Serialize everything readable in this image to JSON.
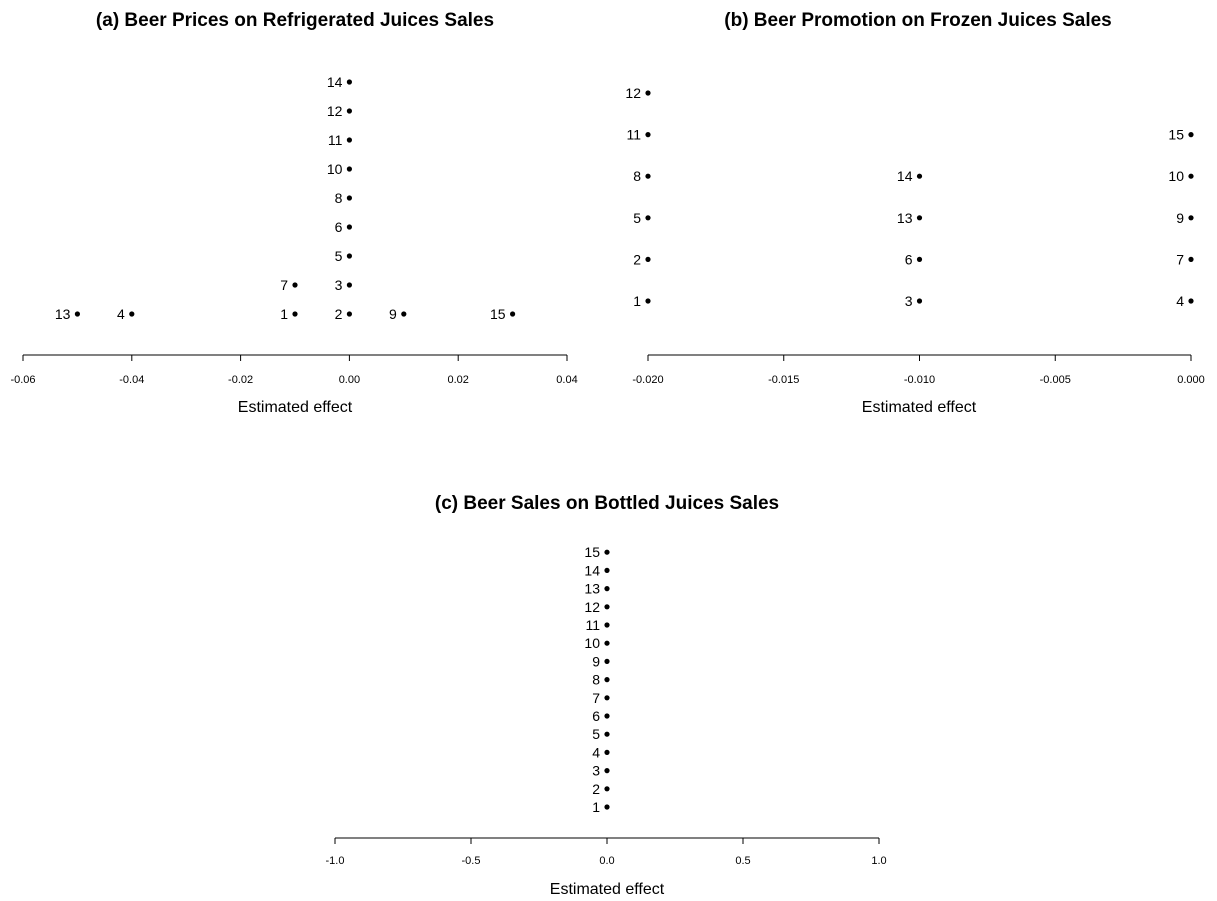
{
  "chart_data": [
    {
      "type": "scatter",
      "title": "(a) Beer Prices on Refrigerated Juices Sales",
      "xlabel": "Estimated effect",
      "ylabel": "",
      "xlim": [
        -0.06,
        0.04
      ],
      "xticks": [
        "-0.06",
        "-0.04",
        "-0.02",
        "0.00",
        "0.02",
        "0.04"
      ],
      "grid": false,
      "points": [
        {
          "label": "14",
          "x": 0.0,
          "level": 9
        },
        {
          "label": "12",
          "x": 0.0,
          "level": 8
        },
        {
          "label": "11",
          "x": 0.0,
          "level": 7
        },
        {
          "label": "10",
          "x": 0.0,
          "level": 6
        },
        {
          "label": "8",
          "x": 0.0,
          "level": 5
        },
        {
          "label": "6",
          "x": 0.0,
          "level": 4
        },
        {
          "label": "5",
          "x": 0.0,
          "level": 3
        },
        {
          "label": "7",
          "x": -0.01,
          "level": 2
        },
        {
          "label": "3",
          "x": 0.0,
          "level": 2
        },
        {
          "label": "13",
          "x": -0.05,
          "level": 1
        },
        {
          "label": "4",
          "x": -0.04,
          "level": 1
        },
        {
          "label": "1",
          "x": -0.01,
          "level": 1
        },
        {
          "label": "2",
          "x": 0.0,
          "level": 1
        },
        {
          "label": "9",
          "x": 0.01,
          "level": 1
        },
        {
          "label": "15",
          "x": 0.03,
          "level": 1
        }
      ]
    },
    {
      "type": "scatter",
      "title": "(b) Beer Promotion on Frozen Juices Sales",
      "xlabel": "Estimated effect",
      "ylabel": "",
      "xlim": [
        -0.02,
        0.0
      ],
      "xticks": [
        "-0.020",
        "-0.015",
        "-0.010",
        "-0.005",
        "0.000"
      ],
      "grid": false,
      "points": [
        {
          "label": "12",
          "x": -0.02,
          "level": 6
        },
        {
          "label": "11",
          "x": -0.02,
          "level": 5
        },
        {
          "label": "15",
          "x": 0.0,
          "level": 5
        },
        {
          "label": "8",
          "x": -0.02,
          "level": 4
        },
        {
          "label": "14",
          "x": -0.01,
          "level": 4
        },
        {
          "label": "10",
          "x": 0.0,
          "level": 4
        },
        {
          "label": "5",
          "x": -0.02,
          "level": 3
        },
        {
          "label": "13",
          "x": -0.01,
          "level": 3
        },
        {
          "label": "9",
          "x": 0.0,
          "level": 3
        },
        {
          "label": "2",
          "x": -0.02,
          "level": 2
        },
        {
          "label": "6",
          "x": -0.01,
          "level": 2
        },
        {
          "label": "7",
          "x": 0.0,
          "level": 2
        },
        {
          "label": "1",
          "x": -0.02,
          "level": 1
        },
        {
          "label": "3",
          "x": -0.01,
          "level": 1
        },
        {
          "label": "4",
          "x": 0.0,
          "level": 1
        }
      ]
    },
    {
      "type": "scatter",
      "title": "(c) Beer Sales on Bottled Juices Sales",
      "xlabel": "Estimated effect",
      "ylabel": "",
      "xlim": [
        -1.0,
        1.0
      ],
      "xticks": [
        "-1.0",
        "-0.5",
        "0.0",
        "0.5",
        "1.0"
      ],
      "grid": false,
      "points": [
        {
          "label": "15",
          "x": 0.0,
          "level": 15
        },
        {
          "label": "14",
          "x": 0.0,
          "level": 14
        },
        {
          "label": "13",
          "x": 0.0,
          "level": 13
        },
        {
          "label": "12",
          "x": 0.0,
          "level": 12
        },
        {
          "label": "11",
          "x": 0.0,
          "level": 11
        },
        {
          "label": "10",
          "x": 0.0,
          "level": 10
        },
        {
          "label": "9",
          "x": 0.0,
          "level": 9
        },
        {
          "label": "8",
          "x": 0.0,
          "level": 8
        },
        {
          "label": "7",
          "x": 0.0,
          "level": 7
        },
        {
          "label": "6",
          "x": 0.0,
          "level": 6
        },
        {
          "label": "5",
          "x": 0.0,
          "level": 5
        },
        {
          "label": "4",
          "x": 0.0,
          "level": 4
        },
        {
          "label": "3",
          "x": 0.0,
          "level": 3
        },
        {
          "label": "2",
          "x": 0.0,
          "level": 2
        },
        {
          "label": "1",
          "x": 0.0,
          "level": 1
        }
      ]
    }
  ]
}
